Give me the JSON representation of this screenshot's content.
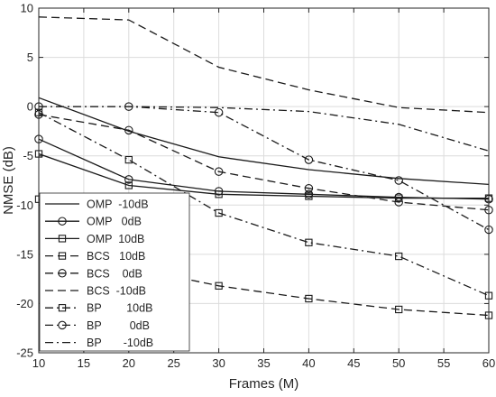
{
  "chart_data": {
    "type": "line",
    "xlabel": "Frames (M)",
    "ylabel": "NMSE (dB)",
    "xlim": [
      10,
      60
    ],
    "ylim": [
      -25,
      10
    ],
    "xticks": [
      10,
      15,
      20,
      25,
      30,
      35,
      40,
      45,
      50,
      55,
      60
    ],
    "yticks": [
      -25,
      -20,
      -15,
      -10,
      -5,
      0,
      5,
      10
    ],
    "grid": true,
    "legend_position": "bottom-left",
    "x": [
      10,
      20,
      30,
      40,
      50,
      60
    ],
    "series": [
      {
        "name": "OMP  -10dB",
        "line": "solid",
        "marker": "none",
        "values": [
          0.9,
          -2.5,
          -5.1,
          -6.4,
          -7.3,
          -7.9
        ]
      },
      {
        "name": "OMP   0dB",
        "line": "solid",
        "marker": "circle",
        "values": [
          -3.3,
          -7.4,
          -8.6,
          -8.9,
          -9.2,
          -9.4
        ]
      },
      {
        "name": "OMP  10dB",
        "line": "solid",
        "marker": "square",
        "values": [
          -4.8,
          -8.0,
          -8.9,
          -9.1,
          -9.3,
          -9.3
        ]
      },
      {
        "name": "BCS   10dB",
        "line": "dashed",
        "marker": "square",
        "values": [
          -9.4,
          -16.3,
          -18.2,
          -19.5,
          -20.6,
          -21.2
        ]
      },
      {
        "name": "BCS    0dB",
        "line": "dashed",
        "marker": "circle",
        "values": [
          -0.8,
          -2.4,
          -6.6,
          -8.3,
          -9.7,
          -10.5
        ]
      },
      {
        "name": "BCS  -10dB",
        "line": "dashed",
        "marker": "none",
        "values": [
          9.1,
          8.8,
          4.0,
          1.7,
          -0.1,
          -0.6
        ]
      },
      {
        "name": "BP        10dB",
        "line": "dashdot",
        "marker": "square",
        "values": [
          -0.6,
          -5.4,
          -10.8,
          -13.8,
          -15.2,
          -19.2
        ]
      },
      {
        "name": "BP         0dB",
        "line": "dashdot",
        "marker": "circle",
        "values": [
          0.0,
          0.0,
          -0.6,
          -5.4,
          -7.5,
          -12.5
        ]
      },
      {
        "name": "BP       -10dB",
        "line": "dashdot",
        "marker": "none",
        "values": [
          0.0,
          0.0,
          -0.1,
          -0.5,
          -1.8,
          -4.5
        ]
      }
    ]
  }
}
